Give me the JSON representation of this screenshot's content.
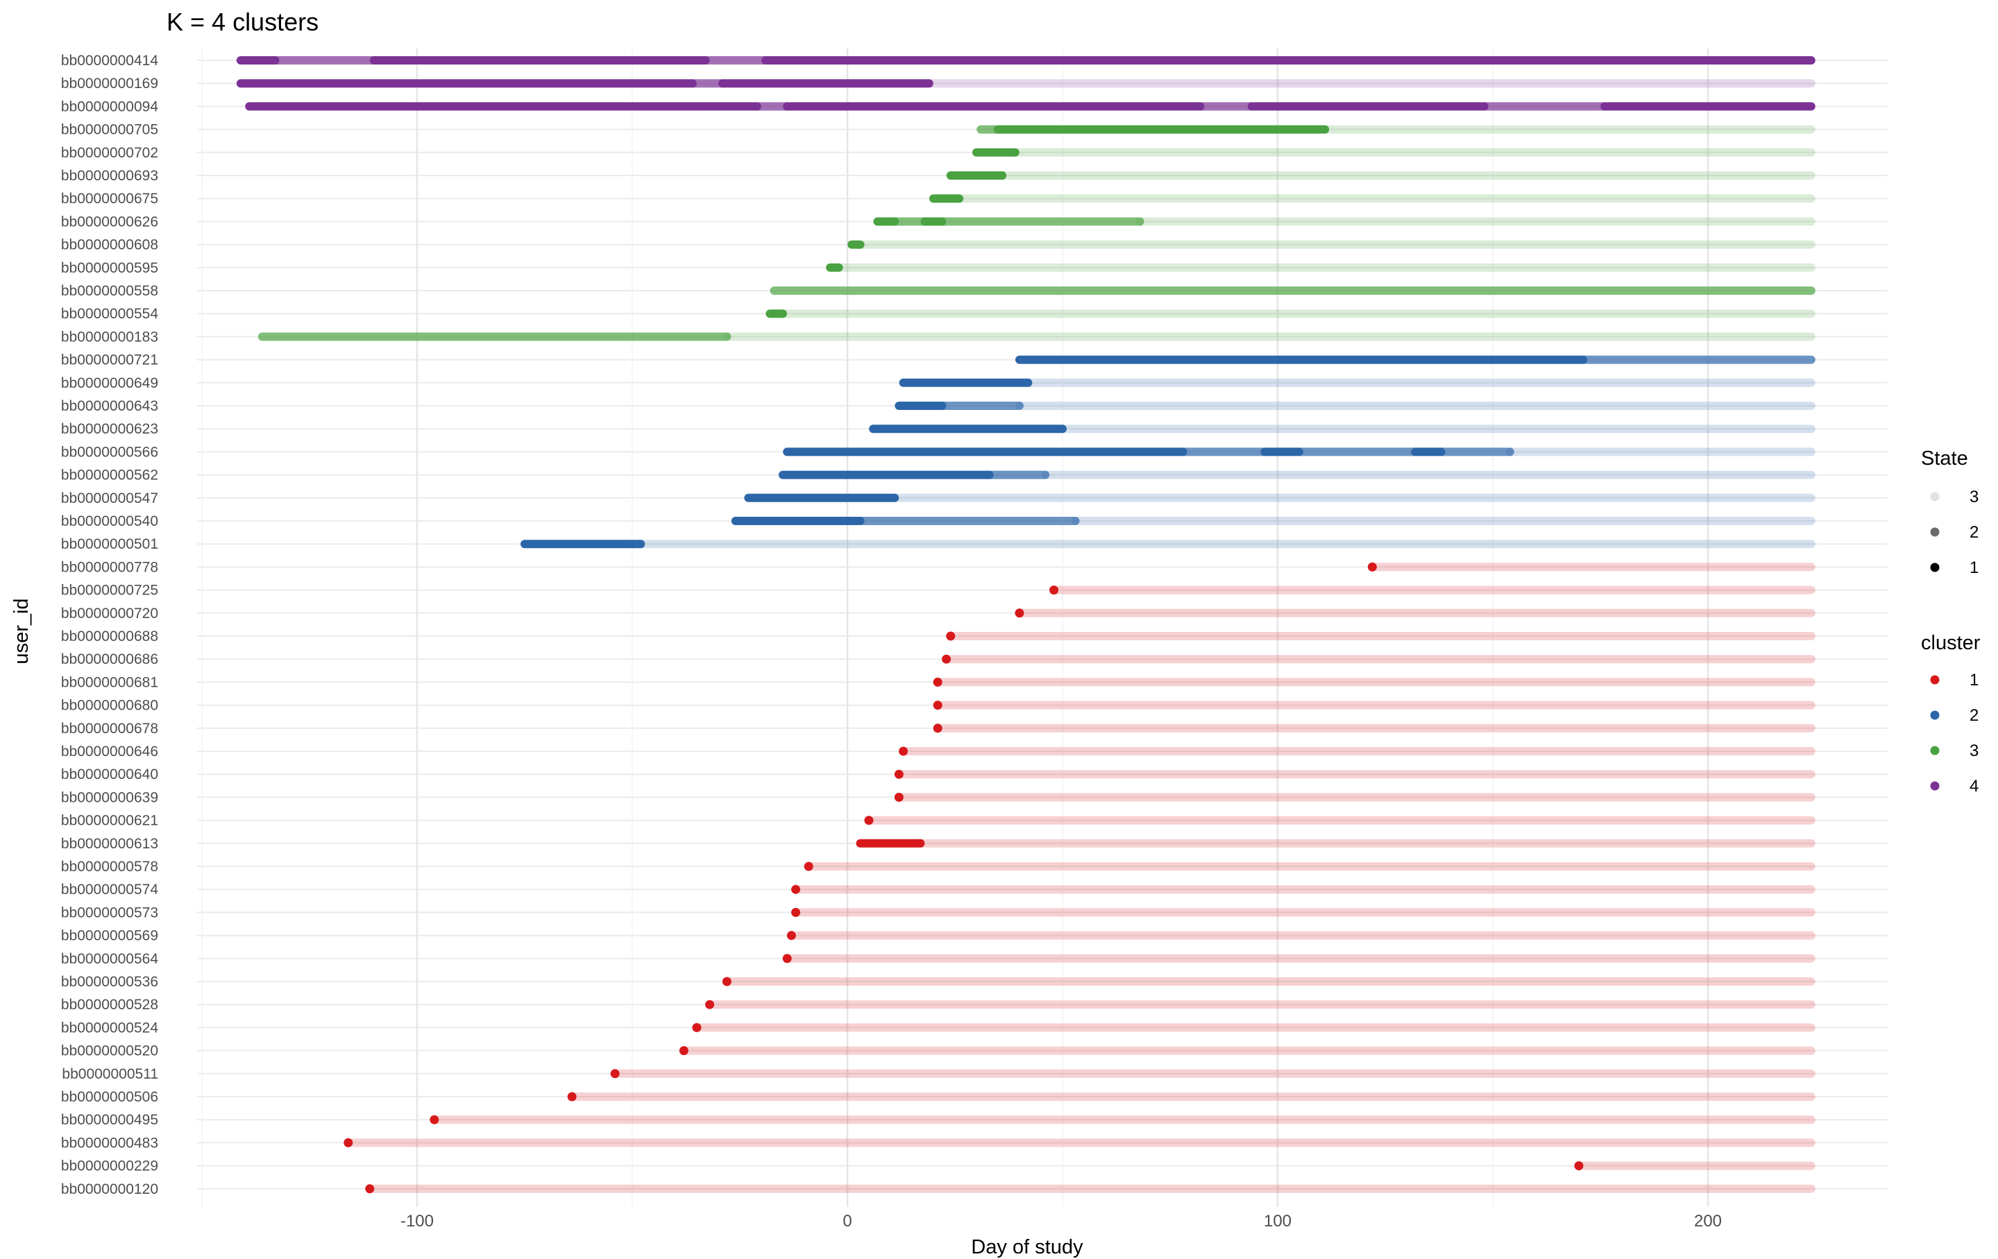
{
  "chart_data": {
    "type": "line",
    "title": "K = 4 clusters",
    "xlabel": "Day of study",
    "ylabel": "user_id",
    "xlim": [
      -150,
      240
    ],
    "xticks": [
      -100,
      0,
      100,
      200
    ],
    "x_tick_labels": [
      "-100",
      "0",
      "100",
      "200"
    ],
    "grid": true,
    "end_day": 224,
    "colors": {
      "1": "#d7191c",
      "2": "#2c66a8",
      "3": "#4aa241",
      "4": "#7b3294"
    },
    "state_opacity": {
      "1": 1.0,
      "2": 0.7,
      "3": 0.2
    },
    "legend_state": {
      "title": "State",
      "entries": [
        "3",
        "2",
        "1"
      ],
      "colors": [
        "#e3e3e3",
        "#6b6b6b",
        "#000000"
      ]
    },
    "legend_cluster": {
      "title": "cluster",
      "entries": [
        "1",
        "2",
        "3",
        "4"
      ]
    },
    "rows": [
      {
        "id": "bb0000000414",
        "cluster": 4,
        "segments": [
          [
            -141,
            -133,
            1
          ],
          [
            -133,
            -110,
            2
          ],
          [
            -110,
            -33,
            1
          ],
          [
            -33,
            -19,
            2
          ],
          [
            -19,
            224,
            1
          ]
        ]
      },
      {
        "id": "bb0000000169",
        "cluster": 4,
        "segments": [
          [
            -141,
            -36,
            1
          ],
          [
            -36,
            -29,
            2
          ],
          [
            -29,
            19,
            1
          ],
          [
            19,
            224,
            3
          ]
        ]
      },
      {
        "id": "bb0000000094",
        "cluster": 4,
        "segments": [
          [
            -139,
            -21,
            1
          ],
          [
            -21,
            -14,
            2
          ],
          [
            -14,
            82,
            1
          ],
          [
            82,
            94,
            2
          ],
          [
            94,
            148,
            1
          ],
          [
            148,
            176,
            2
          ],
          [
            176,
            224,
            1
          ]
        ]
      },
      {
        "id": "bb0000000705",
        "cluster": 3,
        "segments": [
          [
            31,
            35,
            2
          ],
          [
            35,
            111,
            1
          ],
          [
            111,
            224,
            3
          ]
        ]
      },
      {
        "id": "bb0000000702",
        "cluster": 3,
        "segments": [
          [
            30,
            39,
            1
          ],
          [
            39,
            224,
            3
          ]
        ]
      },
      {
        "id": "bb0000000693",
        "cluster": 3,
        "segments": [
          [
            24,
            36,
            1
          ],
          [
            36,
            224,
            3
          ]
        ]
      },
      {
        "id": "bb0000000675",
        "cluster": 3,
        "segments": [
          [
            20,
            26,
            1
          ],
          [
            26,
            224,
            3
          ]
        ]
      },
      {
        "id": "bb0000000626",
        "cluster": 3,
        "segments": [
          [
            7,
            11,
            1
          ],
          [
            11,
            18,
            2
          ],
          [
            18,
            22,
            1
          ],
          [
            22,
            68,
            2
          ],
          [
            68,
            224,
            3
          ]
        ]
      },
      {
        "id": "bb0000000608",
        "cluster": 3,
        "segments": [
          [
            1,
            3,
            1
          ],
          [
            3,
            224,
            3
          ]
        ]
      },
      {
        "id": "bb0000000595",
        "cluster": 3,
        "segments": [
          [
            -4,
            -2,
            1
          ],
          [
            -2,
            224,
            3
          ]
        ]
      },
      {
        "id": "bb0000000558",
        "cluster": 3,
        "segments": [
          [
            -17,
            224,
            2
          ]
        ]
      },
      {
        "id": "bb0000000554",
        "cluster": 3,
        "segments": [
          [
            -18,
            -15,
            1
          ],
          [
            -15,
            224,
            3
          ]
        ]
      },
      {
        "id": "bb0000000183",
        "cluster": 3,
        "segments": [
          [
            -136,
            -28,
            2
          ],
          [
            -28,
            224,
            3
          ]
        ]
      },
      {
        "id": "bb0000000721",
        "cluster": 2,
        "segments": [
          [
            40,
            171,
            1
          ],
          [
            171,
            224,
            2
          ]
        ]
      },
      {
        "id": "bb0000000649",
        "cluster": 2,
        "segments": [
          [
            13,
            42,
            1
          ],
          [
            42,
            224,
            3
          ]
        ]
      },
      {
        "id": "bb0000000643",
        "cluster": 2,
        "segments": [
          [
            12,
            22,
            1
          ],
          [
            22,
            40,
            2
          ],
          [
            40,
            224,
            3
          ]
        ]
      },
      {
        "id": "bb0000000623",
        "cluster": 2,
        "segments": [
          [
            6,
            50,
            1
          ],
          [
            50,
            224,
            3
          ]
        ]
      },
      {
        "id": "bb0000000566",
        "cluster": 2,
        "segments": [
          [
            -14,
            78,
            1
          ],
          [
            78,
            97,
            2
          ],
          [
            97,
            105,
            1
          ],
          [
            105,
            132,
            2
          ],
          [
            132,
            138,
            1
          ],
          [
            138,
            154,
            2
          ],
          [
            154,
            224,
            3
          ]
        ]
      },
      {
        "id": "bb0000000562",
        "cluster": 2,
        "segments": [
          [
            -15,
            33,
            1
          ],
          [
            33,
            46,
            2
          ],
          [
            46,
            224,
            3
          ]
        ]
      },
      {
        "id": "bb0000000547",
        "cluster": 2,
        "segments": [
          [
            -23,
            11,
            1
          ],
          [
            11,
            224,
            3
          ]
        ]
      },
      {
        "id": "bb0000000540",
        "cluster": 2,
        "segments": [
          [
            -26,
            3,
            1
          ],
          [
            3,
            53,
            2
          ],
          [
            53,
            224,
            3
          ]
        ]
      },
      {
        "id": "bb0000000501",
        "cluster": 2,
        "segments": [
          [
            -75,
            -48,
            1
          ],
          [
            -48,
            224,
            3
          ]
        ]
      },
      {
        "id": "bb0000000778",
        "cluster": 1,
        "segments": [
          [
            122,
            122,
            1
          ],
          [
            122,
            224,
            3
          ]
        ]
      },
      {
        "id": "bb0000000725",
        "cluster": 1,
        "segments": [
          [
            48,
            48,
            1
          ],
          [
            48,
            224,
            3
          ]
        ]
      },
      {
        "id": "bb0000000720",
        "cluster": 1,
        "segments": [
          [
            40,
            40,
            1
          ],
          [
            40,
            224,
            3
          ]
        ]
      },
      {
        "id": "bb0000000688",
        "cluster": 1,
        "segments": [
          [
            24,
            24,
            1
          ],
          [
            24,
            224,
            3
          ]
        ]
      },
      {
        "id": "bb0000000686",
        "cluster": 1,
        "segments": [
          [
            23,
            23,
            1
          ],
          [
            23,
            224,
            3
          ]
        ]
      },
      {
        "id": "bb0000000681",
        "cluster": 1,
        "segments": [
          [
            21,
            21,
            1
          ],
          [
            21,
            224,
            3
          ]
        ]
      },
      {
        "id": "bb0000000680",
        "cluster": 1,
        "segments": [
          [
            21,
            21,
            1
          ],
          [
            21,
            224,
            3
          ]
        ]
      },
      {
        "id": "bb0000000678",
        "cluster": 1,
        "segments": [
          [
            21,
            21,
            1
          ],
          [
            21,
            224,
            3
          ]
        ]
      },
      {
        "id": "bb0000000646",
        "cluster": 1,
        "segments": [
          [
            13,
            13,
            1
          ],
          [
            13,
            224,
            3
          ]
        ]
      },
      {
        "id": "bb0000000640",
        "cluster": 1,
        "segments": [
          [
            12,
            12,
            1
          ],
          [
            12,
            224,
            3
          ]
        ]
      },
      {
        "id": "bb0000000639",
        "cluster": 1,
        "segments": [
          [
            12,
            12,
            1
          ],
          [
            12,
            224,
            3
          ]
        ]
      },
      {
        "id": "bb0000000621",
        "cluster": 1,
        "segments": [
          [
            5,
            5,
            1
          ],
          [
            5,
            224,
            3
          ]
        ]
      },
      {
        "id": "bb0000000613",
        "cluster": 1,
        "segments": [
          [
            3,
            17,
            1
          ],
          [
            17,
            224,
            3
          ]
        ]
      },
      {
        "id": "bb0000000578",
        "cluster": 1,
        "segments": [
          [
            -9,
            -9,
            1
          ],
          [
            -9,
            224,
            3
          ]
        ]
      },
      {
        "id": "bb0000000574",
        "cluster": 1,
        "segments": [
          [
            -12,
            -12,
            1
          ],
          [
            -12,
            224,
            3
          ]
        ]
      },
      {
        "id": "bb0000000573",
        "cluster": 1,
        "segments": [
          [
            -12,
            -12,
            1
          ],
          [
            -12,
            224,
            3
          ]
        ]
      },
      {
        "id": "bb0000000569",
        "cluster": 1,
        "segments": [
          [
            -13,
            -13,
            1
          ],
          [
            -13,
            224,
            3
          ]
        ]
      },
      {
        "id": "bb0000000564",
        "cluster": 1,
        "segments": [
          [
            -14,
            -14,
            1
          ],
          [
            -14,
            224,
            3
          ]
        ]
      },
      {
        "id": "bb0000000536",
        "cluster": 1,
        "segments": [
          [
            -28,
            -28,
            1
          ],
          [
            -28,
            224,
            3
          ]
        ]
      },
      {
        "id": "bb0000000528",
        "cluster": 1,
        "segments": [
          [
            -32,
            -32,
            1
          ],
          [
            -32,
            224,
            3
          ]
        ]
      },
      {
        "id": "bb0000000524",
        "cluster": 1,
        "segments": [
          [
            -35,
            -35,
            1
          ],
          [
            -35,
            224,
            3
          ]
        ]
      },
      {
        "id": "bb0000000520",
        "cluster": 1,
        "segments": [
          [
            -38,
            -38,
            1
          ],
          [
            -38,
            224,
            3
          ]
        ]
      },
      {
        "id": "bb0000000511",
        "cluster": 1,
        "segments": [
          [
            -54,
            -54,
            1
          ],
          [
            -54,
            224,
            3
          ]
        ]
      },
      {
        "id": "bb0000000506",
        "cluster": 1,
        "segments": [
          [
            -64,
            -64,
            1
          ],
          [
            -64,
            224,
            3
          ]
        ]
      },
      {
        "id": "bb0000000495",
        "cluster": 1,
        "segments": [
          [
            -96,
            -96,
            1
          ],
          [
            -96,
            224,
            3
          ]
        ]
      },
      {
        "id": "bb0000000483",
        "cluster": 1,
        "segments": [
          [
            -116,
            -116,
            1
          ],
          [
            -116,
            224,
            3
          ]
        ]
      },
      {
        "id": "bb0000000229",
        "cluster": 1,
        "segments": [
          [
            170,
            170,
            1
          ],
          [
            170,
            224,
            3
          ]
        ]
      },
      {
        "id": "bb0000000120",
        "cluster": 1,
        "segments": [
          [
            -111,
            -111,
            1
          ],
          [
            -111,
            224,
            3
          ]
        ]
      }
    ]
  }
}
